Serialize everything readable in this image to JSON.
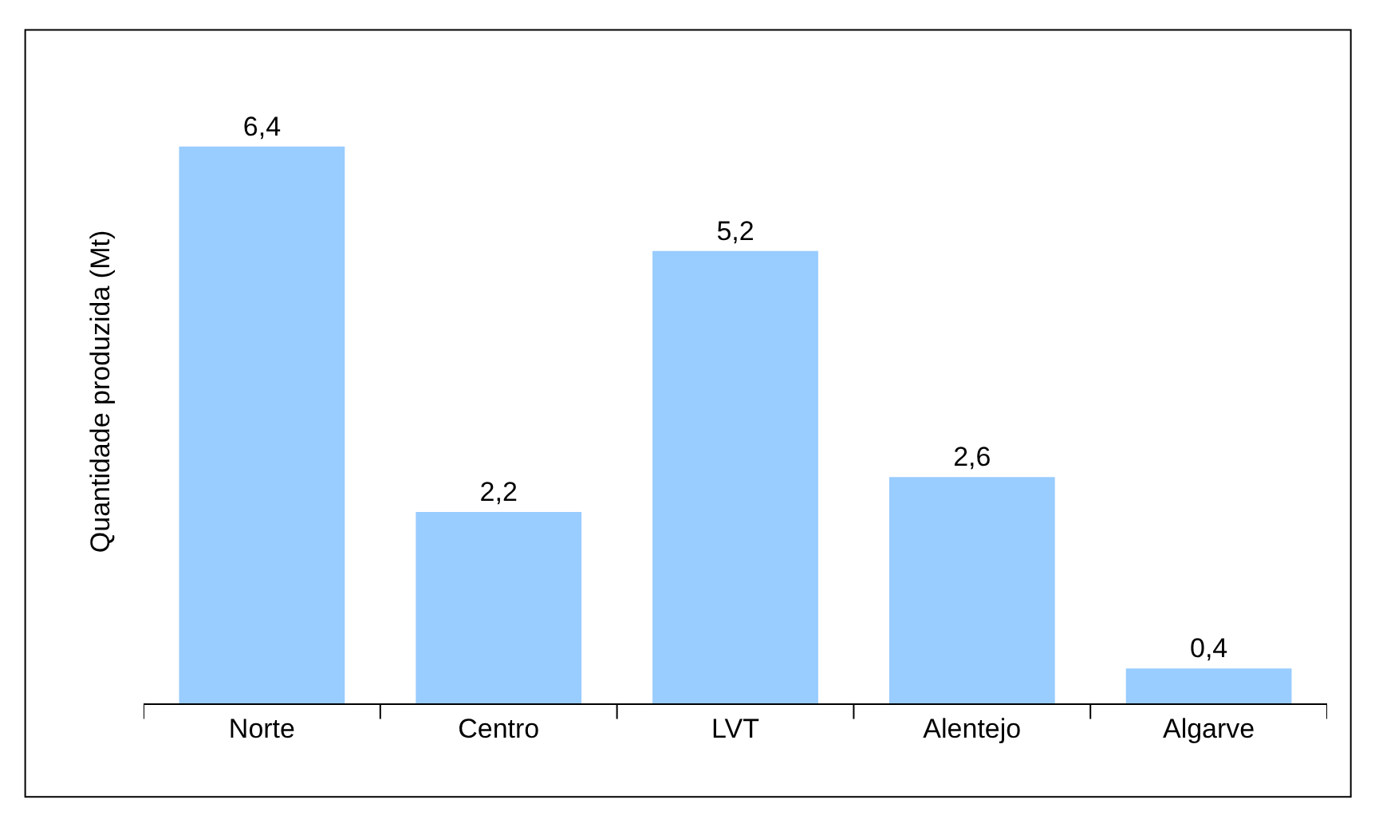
{
  "chart_data": {
    "type": "bar",
    "ylabel": "Quantidade produzida (Mt)",
    "categories": [
      "Norte",
      "Centro",
      "LVT",
      "Alentejo",
      "Algarve"
    ],
    "values": [
      6.4,
      2.2,
      5.2,
      2.6,
      0.4
    ],
    "value_labels": [
      "6,4",
      "2,2",
      "5,2",
      "2,6",
      "0,4"
    ],
    "color": "#99ccff"
  }
}
